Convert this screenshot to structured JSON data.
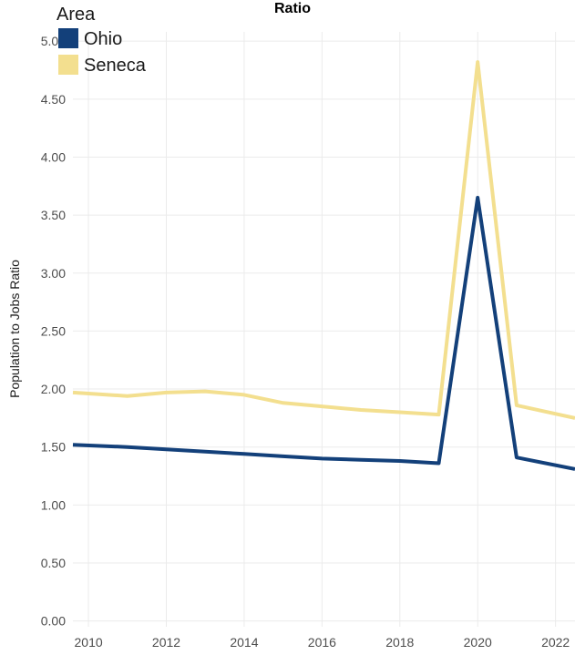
{
  "chart_data": {
    "type": "line",
    "title": "Ratio",
    "ylabel": "Population to Jobs Ratio",
    "xlabel": "",
    "xlim": [
      2009.6,
      2022.5
    ],
    "ylim": [
      -0.05,
      5.08
    ],
    "x_ticks": [
      2010,
      2012,
      2014,
      2016,
      2018,
      2020,
      2022
    ],
    "x_tick_labels": [
      "2010",
      "2012",
      "2014",
      "2016",
      "2018",
      "2020",
      "2022"
    ],
    "y_ticks": [
      0,
      0.5,
      1,
      1.5,
      2,
      2.5,
      3,
      3.5,
      4,
      4.5,
      5
    ],
    "y_tick_labels": [
      "0.00",
      "0.50",
      "1.00",
      "1.50",
      "2.00",
      "2.50",
      "3.00",
      "3.50",
      "4.00",
      "4.50",
      "5.00"
    ],
    "grid": true,
    "legend": {
      "title": "Area",
      "placement": "top-left"
    },
    "series": [
      {
        "name": "Ohio",
        "color": "#13407a",
        "x": [
          2009.6,
          2011,
          2012,
          2013,
          2014,
          2015,
          2016,
          2017,
          2018,
          2019,
          2020,
          2021,
          2022.5
        ],
        "values": [
          1.52,
          1.5,
          1.48,
          1.46,
          1.44,
          1.42,
          1.4,
          1.39,
          1.38,
          1.36,
          3.65,
          1.41,
          1.31
        ]
      },
      {
        "name": "Seneca",
        "color": "#f3df8f",
        "x": [
          2009.6,
          2011,
          2012,
          2013,
          2014,
          2015,
          2016,
          2017,
          2018,
          2019,
          2020,
          2021,
          2022.5
        ],
        "values": [
          1.97,
          1.94,
          1.97,
          1.98,
          1.95,
          1.88,
          1.85,
          1.82,
          1.8,
          1.78,
          4.82,
          1.86,
          1.75
        ]
      }
    ]
  }
}
